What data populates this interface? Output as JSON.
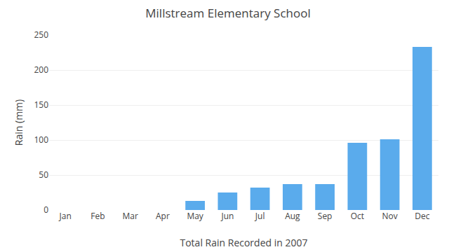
{
  "chart_data": {
    "type": "bar",
    "title": "Millstream Elementary School",
    "xlabel": "Total Rain Recorded in 2007",
    "ylabel": "Rain (mm)",
    "categories": [
      "Jan",
      "Feb",
      "Mar",
      "Apr",
      "May",
      "Jun",
      "Jul",
      "Aug",
      "Sep",
      "Oct",
      "Nov",
      "Dec"
    ],
    "values": [
      0,
      0,
      0,
      0,
      13,
      25,
      32,
      37,
      37,
      96,
      101,
      233
    ],
    "color": "#5aabec",
    "ylim": [
      0,
      250
    ],
    "yticks": [
      0,
      50,
      100,
      150,
      200,
      250
    ],
    "grid": true
  }
}
